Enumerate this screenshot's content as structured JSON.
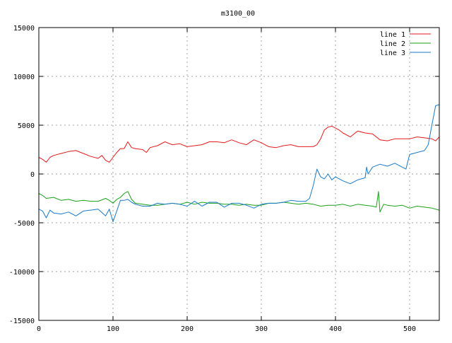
{
  "chart_data": {
    "type": "line",
    "title": "m3100_00",
    "xlabel": "",
    "ylabel": "",
    "xlim": [
      0,
      540
    ],
    "ylim": [
      -15000,
      15000
    ],
    "x_ticks": [
      0,
      100,
      200,
      300,
      400,
      500
    ],
    "y_ticks": [
      -15000,
      -10000,
      -5000,
      0,
      5000,
      10000,
      15000
    ],
    "grid": true,
    "legend_position": "top-right",
    "series": [
      {
        "name": "line 1",
        "color": "#e41a1c",
        "x": [
          0,
          5,
          10,
          15,
          20,
          30,
          40,
          50,
          60,
          70,
          80,
          85,
          90,
          95,
          100,
          105,
          110,
          115,
          120,
          125,
          130,
          140,
          145,
          150,
          160,
          170,
          180,
          190,
          200,
          210,
          220,
          230,
          240,
          250,
          260,
          270,
          280,
          290,
          300,
          310,
          320,
          330,
          340,
          350,
          360,
          370,
          375,
          380,
          385,
          390,
          395,
          400,
          405,
          410,
          420,
          425,
          430,
          440,
          450,
          460,
          470,
          480,
          490,
          500,
          510,
          520,
          530,
          535,
          540
        ],
        "y": [
          1700,
          1500,
          1200,
          1700,
          1900,
          2100,
          2300,
          2400,
          2100,
          1800,
          1600,
          1900,
          1400,
          1200,
          1700,
          2200,
          2600,
          2600,
          3300,
          2700,
          2600,
          2500,
          2200,
          2700,
          2900,
          3300,
          3000,
          3100,
          2800,
          2900,
          3000,
          3300,
          3300,
          3200,
          3500,
          3200,
          3000,
          3500,
          3200,
          2800,
          2700,
          2900,
          3000,
          2800,
          2800,
          2800,
          3000,
          3600,
          4500,
          4800,
          4900,
          4700,
          4500,
          4200,
          3800,
          4100,
          4400,
          4200,
          4100,
          3500,
          3400,
          3600,
          3600,
          3600,
          3800,
          3700,
          3600,
          3400,
          3800
        ]
      },
      {
        "name": "line 2",
        "color": "#1aa01a",
        "x": [
          0,
          5,
          10,
          20,
          30,
          40,
          50,
          60,
          70,
          80,
          90,
          95,
          100,
          105,
          110,
          115,
          120,
          125,
          130,
          140,
          150,
          160,
          170,
          180,
          190,
          200,
          210,
          220,
          230,
          240,
          250,
          260,
          270,
          280,
          290,
          300,
          310,
          320,
          330,
          340,
          350,
          360,
          370,
          380,
          390,
          400,
          410,
          420,
          430,
          440,
          450,
          455,
          458,
          460,
          465,
          470,
          480,
          490,
          500,
          510,
          520,
          530,
          540
        ],
        "y": [
          -2000,
          -2200,
          -2500,
          -2400,
          -2700,
          -2600,
          -2800,
          -2700,
          -2800,
          -2800,
          -2500,
          -2700,
          -3000,
          -2600,
          -2400,
          -2000,
          -1800,
          -2600,
          -3000,
          -3100,
          -3200,
          -3200,
          -3100,
          -3000,
          -3100,
          -2900,
          -3100,
          -2900,
          -3000,
          -3000,
          -3100,
          -3100,
          -3200,
          -3100,
          -3200,
          -3200,
          -3000,
          -3000,
          -2900,
          -3000,
          -3100,
          -3000,
          -3100,
          -3300,
          -3200,
          -3200,
          -3100,
          -3300,
          -3100,
          -3200,
          -3300,
          -3400,
          -1800,
          -3900,
          -3100,
          -3200,
          -3300,
          -3200,
          -3500,
          -3300,
          -3400,
          -3500,
          -3700
        ]
      },
      {
        "name": "line 3",
        "color": "#1a7ac8",
        "x": [
          0,
          5,
          10,
          15,
          20,
          30,
          40,
          50,
          60,
          70,
          80,
          90,
          95,
          100,
          105,
          110,
          115,
          120,
          125,
          130,
          140,
          150,
          160,
          170,
          180,
          190,
          200,
          210,
          220,
          230,
          240,
          250,
          260,
          270,
          280,
          290,
          300,
          310,
          320,
          330,
          340,
          350,
          360,
          365,
          370,
          375,
          380,
          385,
          390,
          395,
          400,
          410,
          420,
          430,
          440,
          442,
          444,
          450,
          460,
          470,
          480,
          490,
          495,
          500,
          510,
          520,
          525,
          530,
          535,
          540
        ],
        "y": [
          -3600,
          -3800,
          -4500,
          -3700,
          -4000,
          -4100,
          -3900,
          -4300,
          -3800,
          -3700,
          -3600,
          -4300,
          -3600,
          -4900,
          -3800,
          -2700,
          -2700,
          -2600,
          -2900,
          -3100,
          -3300,
          -3300,
          -3000,
          -3100,
          -3000,
          -3100,
          -3300,
          -2800,
          -3300,
          -2900,
          -2900,
          -3400,
          -3000,
          -3000,
          -3200,
          -3500,
          -3100,
          -3000,
          -3000,
          -2900,
          -2700,
          -2800,
          -2800,
          -2500,
          -1200,
          500,
          -300,
          -500,
          0,
          -600,
          -300,
          -700,
          -1000,
          -600,
          -400,
          700,
          0,
          700,
          1000,
          800,
          1100,
          700,
          500,
          2000,
          2200,
          2400,
          3000,
          5000,
          7000,
          7100
        ]
      }
    ]
  }
}
